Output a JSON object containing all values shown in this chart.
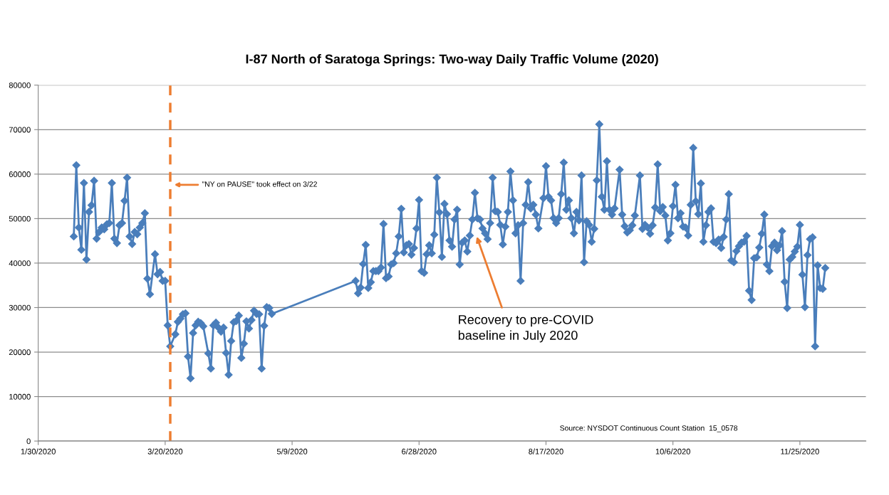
{
  "chart_data": {
    "type": "line",
    "title": "I-87 North of Saratoga Springs: Two-way Daily Traffic Volume (2020)",
    "xlim": [
      "2020-01-30",
      "2020-12-21"
    ],
    "xticks": [
      {
        "value": "2020-01-30",
        "label": "1/30/2020"
      },
      {
        "value": "2020-03-20",
        "label": "3/20/2020"
      },
      {
        "value": "2020-05-09",
        "label": "5/9/2020"
      },
      {
        "value": "2020-06-28",
        "label": "6/28/2020"
      },
      {
        "value": "2020-08-17",
        "label": "8/17/2020"
      },
      {
        "value": "2020-10-06",
        "label": "10/6/2020"
      },
      {
        "value": "2020-11-25",
        "label": "11/25/2020"
      }
    ],
    "ylim": [
      0,
      80000
    ],
    "yticks": [
      0,
      10000,
      20000,
      30000,
      40000,
      50000,
      60000,
      70000,
      80000
    ],
    "grid": "y",
    "marker": "diamond",
    "line_style": "solid",
    "series": [
      {
        "color": "#4a7ebb",
        "x": [
          "2020-02-13",
          "2020-02-14",
          "2020-02-15",
          "2020-02-16",
          "2020-02-17",
          "2020-02-18",
          "2020-02-19",
          "2020-02-20",
          "2020-02-21",
          "2020-02-22",
          "2020-02-23",
          "2020-02-24",
          "2020-02-25",
          "2020-02-26",
          "2020-02-27",
          "2020-02-28",
          "2020-02-29",
          "2020-03-01",
          "2020-03-02",
          "2020-03-03",
          "2020-03-04",
          "2020-03-05",
          "2020-03-06",
          "2020-03-07",
          "2020-03-08",
          "2020-03-09",
          "2020-03-10",
          "2020-03-11",
          "2020-03-12",
          "2020-03-13",
          "2020-03-14",
          "2020-03-16",
          "2020-03-17",
          "2020-03-18",
          "2020-03-19",
          "2020-03-20",
          "2020-03-21",
          "2020-03-22",
          "2020-03-24",
          "2020-03-25",
          "2020-03-26",
          "2020-03-27",
          "2020-03-28",
          "2020-03-29",
          "2020-03-30",
          "2020-03-31",
          "2020-04-01",
          "2020-04-02",
          "2020-04-03",
          "2020-04-04",
          "2020-04-06",
          "2020-04-07",
          "2020-04-08",
          "2020-04-09",
          "2020-04-10",
          "2020-04-11",
          "2020-04-12",
          "2020-04-13",
          "2020-04-14",
          "2020-04-15",
          "2020-04-16",
          "2020-04-17",
          "2020-04-18",
          "2020-04-19",
          "2020-04-20",
          "2020-04-21",
          "2020-04-22",
          "2020-04-23",
          "2020-04-24",
          "2020-04-25",
          "2020-04-26",
          "2020-04-27",
          "2020-04-28",
          "2020-04-29",
          "2020-04-30",
          "2020-05-01",
          "2020-06-03",
          "2020-06-04",
          "2020-06-05",
          "2020-06-06",
          "2020-06-07",
          "2020-06-08",
          "2020-06-09",
          "2020-06-10",
          "2020-06-11",
          "2020-06-12",
          "2020-06-13",
          "2020-06-14",
          "2020-06-15",
          "2020-06-16",
          "2020-06-17",
          "2020-06-18",
          "2020-06-19",
          "2020-06-20",
          "2020-06-21",
          "2020-06-22",
          "2020-06-23",
          "2020-06-24",
          "2020-06-25",
          "2020-06-26",
          "2020-06-27",
          "2020-06-28",
          "2020-06-29",
          "2020-06-30",
          "2020-07-01",
          "2020-07-02",
          "2020-07-03",
          "2020-07-04",
          "2020-07-05",
          "2020-07-06",
          "2020-07-07",
          "2020-07-08",
          "2020-07-09",
          "2020-07-10",
          "2020-07-11",
          "2020-07-12",
          "2020-07-13",
          "2020-07-14",
          "2020-07-15",
          "2020-07-16",
          "2020-07-17",
          "2020-07-18",
          "2020-07-19",
          "2020-07-20",
          "2020-07-21",
          "2020-07-22",
          "2020-07-23",
          "2020-07-24",
          "2020-07-25",
          "2020-07-26",
          "2020-07-27",
          "2020-07-28",
          "2020-07-29",
          "2020-07-30",
          "2020-07-31",
          "2020-08-01",
          "2020-08-02",
          "2020-08-03",
          "2020-08-04",
          "2020-08-05",
          "2020-08-06",
          "2020-08-07",
          "2020-08-08",
          "2020-08-09",
          "2020-08-10",
          "2020-08-11",
          "2020-08-12",
          "2020-08-13",
          "2020-08-14",
          "2020-08-16",
          "2020-08-17",
          "2020-08-18",
          "2020-08-19",
          "2020-08-20",
          "2020-08-21",
          "2020-08-22",
          "2020-08-23",
          "2020-08-24",
          "2020-08-25",
          "2020-08-26",
          "2020-08-27",
          "2020-08-28",
          "2020-08-29",
          "2020-08-30",
          "2020-08-31",
          "2020-09-01",
          "2020-09-02",
          "2020-09-03",
          "2020-09-04",
          "2020-09-05",
          "2020-09-06",
          "2020-09-07",
          "2020-09-08",
          "2020-09-09",
          "2020-09-10",
          "2020-09-11",
          "2020-09-12",
          "2020-09-13",
          "2020-09-15",
          "2020-09-16",
          "2020-09-17",
          "2020-09-18",
          "2020-09-19",
          "2020-09-20",
          "2020-09-21",
          "2020-09-23",
          "2020-09-24",
          "2020-09-25",
          "2020-09-26",
          "2020-09-27",
          "2020-09-28",
          "2020-09-29",
          "2020-09-30",
          "2020-10-01",
          "2020-10-02",
          "2020-10-03",
          "2020-10-04",
          "2020-10-05",
          "2020-10-06",
          "2020-10-07",
          "2020-10-08",
          "2020-10-09",
          "2020-10-10",
          "2020-10-11",
          "2020-10-12",
          "2020-10-13",
          "2020-10-14",
          "2020-10-15",
          "2020-10-16",
          "2020-10-17",
          "2020-10-18",
          "2020-10-19",
          "2020-10-20",
          "2020-10-21",
          "2020-10-22",
          "2020-10-23",
          "2020-10-24",
          "2020-10-25",
          "2020-10-26",
          "2020-10-27",
          "2020-10-28",
          "2020-10-29",
          "2020-10-30",
          "2020-10-31",
          "2020-11-01",
          "2020-11-02",
          "2020-11-03",
          "2020-11-04",
          "2020-11-05",
          "2020-11-06",
          "2020-11-07",
          "2020-11-08",
          "2020-11-09",
          "2020-11-10",
          "2020-11-11",
          "2020-11-12",
          "2020-11-13",
          "2020-11-14",
          "2020-11-15",
          "2020-11-16",
          "2020-11-17",
          "2020-11-18",
          "2020-11-19",
          "2020-11-20",
          "2020-11-21",
          "2020-11-22",
          "2020-11-23",
          "2020-11-24",
          "2020-11-25",
          "2020-11-26",
          "2020-11-27",
          "2020-11-28",
          "2020-11-29",
          "2020-11-30",
          "2020-12-01",
          "2020-12-02",
          "2020-12-03",
          "2020-12-04",
          "2020-12-05"
        ],
        "values": [
          46000,
          62000,
          48000,
          43000,
          58000,
          40800,
          51500,
          53000,
          58500,
          45500,
          47000,
          48000,
          47600,
          48700,
          49000,
          58000,
          45500,
          44500,
          48500,
          49000,
          54000,
          59200,
          46000,
          44300,
          47000,
          46500,
          48000,
          49000,
          51200,
          36500,
          33000,
          42000,
          37500,
          38000,
          36000,
          36000,
          26000,
          21300,
          24000,
          26800,
          27500,
          28500,
          28700,
          19000,
          14100,
          24300,
          26000,
          26800,
          26500,
          25800,
          19700,
          16300,
          26000,
          26600,
          25500,
          24600,
          25500,
          19800,
          14900,
          22500,
          26700,
          27000,
          28200,
          18700,
          21900,
          26900,
          25300,
          27200,
          29300,
          28600,
          28500,
          16300,
          25900,
          30100,
          29900,
          28600,
          36000,
          33200,
          34500,
          39800,
          44100,
          34400,
          35700,
          38200,
          38200,
          38200,
          39000,
          48800,
          36600,
          37000,
          39700,
          40000,
          42200,
          46000,
          52200,
          42400,
          44000,
          44300,
          41900,
          43400,
          47800,
          54200,
          38200,
          37800,
          42000,
          44000,
          42200,
          46400,
          59200,
          51400,
          41400,
          53300,
          51000,
          45100,
          43700,
          49800,
          52000,
          39700,
          44600,
          45100,
          42600,
          46200,
          49800,
          55800,
          50100,
          49800,
          47800,
          46700,
          45400,
          49000,
          59200,
          51700,
          51500,
          48600,
          44200,
          48200,
          51500,
          60600,
          54100,
          46700,
          48500,
          36000,
          49000,
          53100,
          58200,
          52300,
          53100,
          50900,
          47800,
          54600,
          61800,
          54900,
          54100,
          50100,
          49000,
          50100,
          55500,
          62600,
          52000,
          54100,
          50100,
          46700,
          51500,
          49600,
          59700,
          40200,
          49400,
          48600,
          44800,
          47700,
          58600,
          71200,
          54900,
          52000,
          62900,
          52000,
          50900,
          52300,
          61000,
          50900,
          48300,
          46900,
          47400,
          48500,
          50700,
          59700,
          47700,
          48600,
          48000,
          46600,
          48500,
          52500,
          62200,
          51700,
          52600,
          50700,
          45100,
          46700,
          52800,
          57600,
          50100,
          51200,
          48200,
          48000,
          46200,
          53100,
          65900,
          53900,
          51000,
          57900,
          44800,
          48500,
          51500,
          52300,
          44800,
          44500,
          45300,
          43400,
          45900,
          49800,
          55500,
          40600,
          40200,
          42700,
          43800,
          44600,
          44800,
          46100,
          33800,
          31700,
          41100,
          41300,
          43500,
          46600,
          50900,
          39700,
          38200,
          43800,
          44600,
          42900,
          44000,
          47200,
          35800,
          29900,
          40800,
          41400,
          42600,
          43700,
          48600,
          37400,
          30100,
          41800,
          45400,
          45800,
          21300,
          39500,
          34400,
          34200,
          38900
        ]
      }
    ],
    "ref_lines": [
      {
        "axis": "x",
        "value": "2020-03-22",
        "label": "\"NY on PAUSE\" took effect on 3/22",
        "color": "#ed7d31",
        "line_style": "dashed"
      }
    ],
    "annotations": [
      "Recovery to pre-COVID baseline in July 2020",
      "Source: NYSDOT Continuous Count Station  15_0578"
    ]
  }
}
